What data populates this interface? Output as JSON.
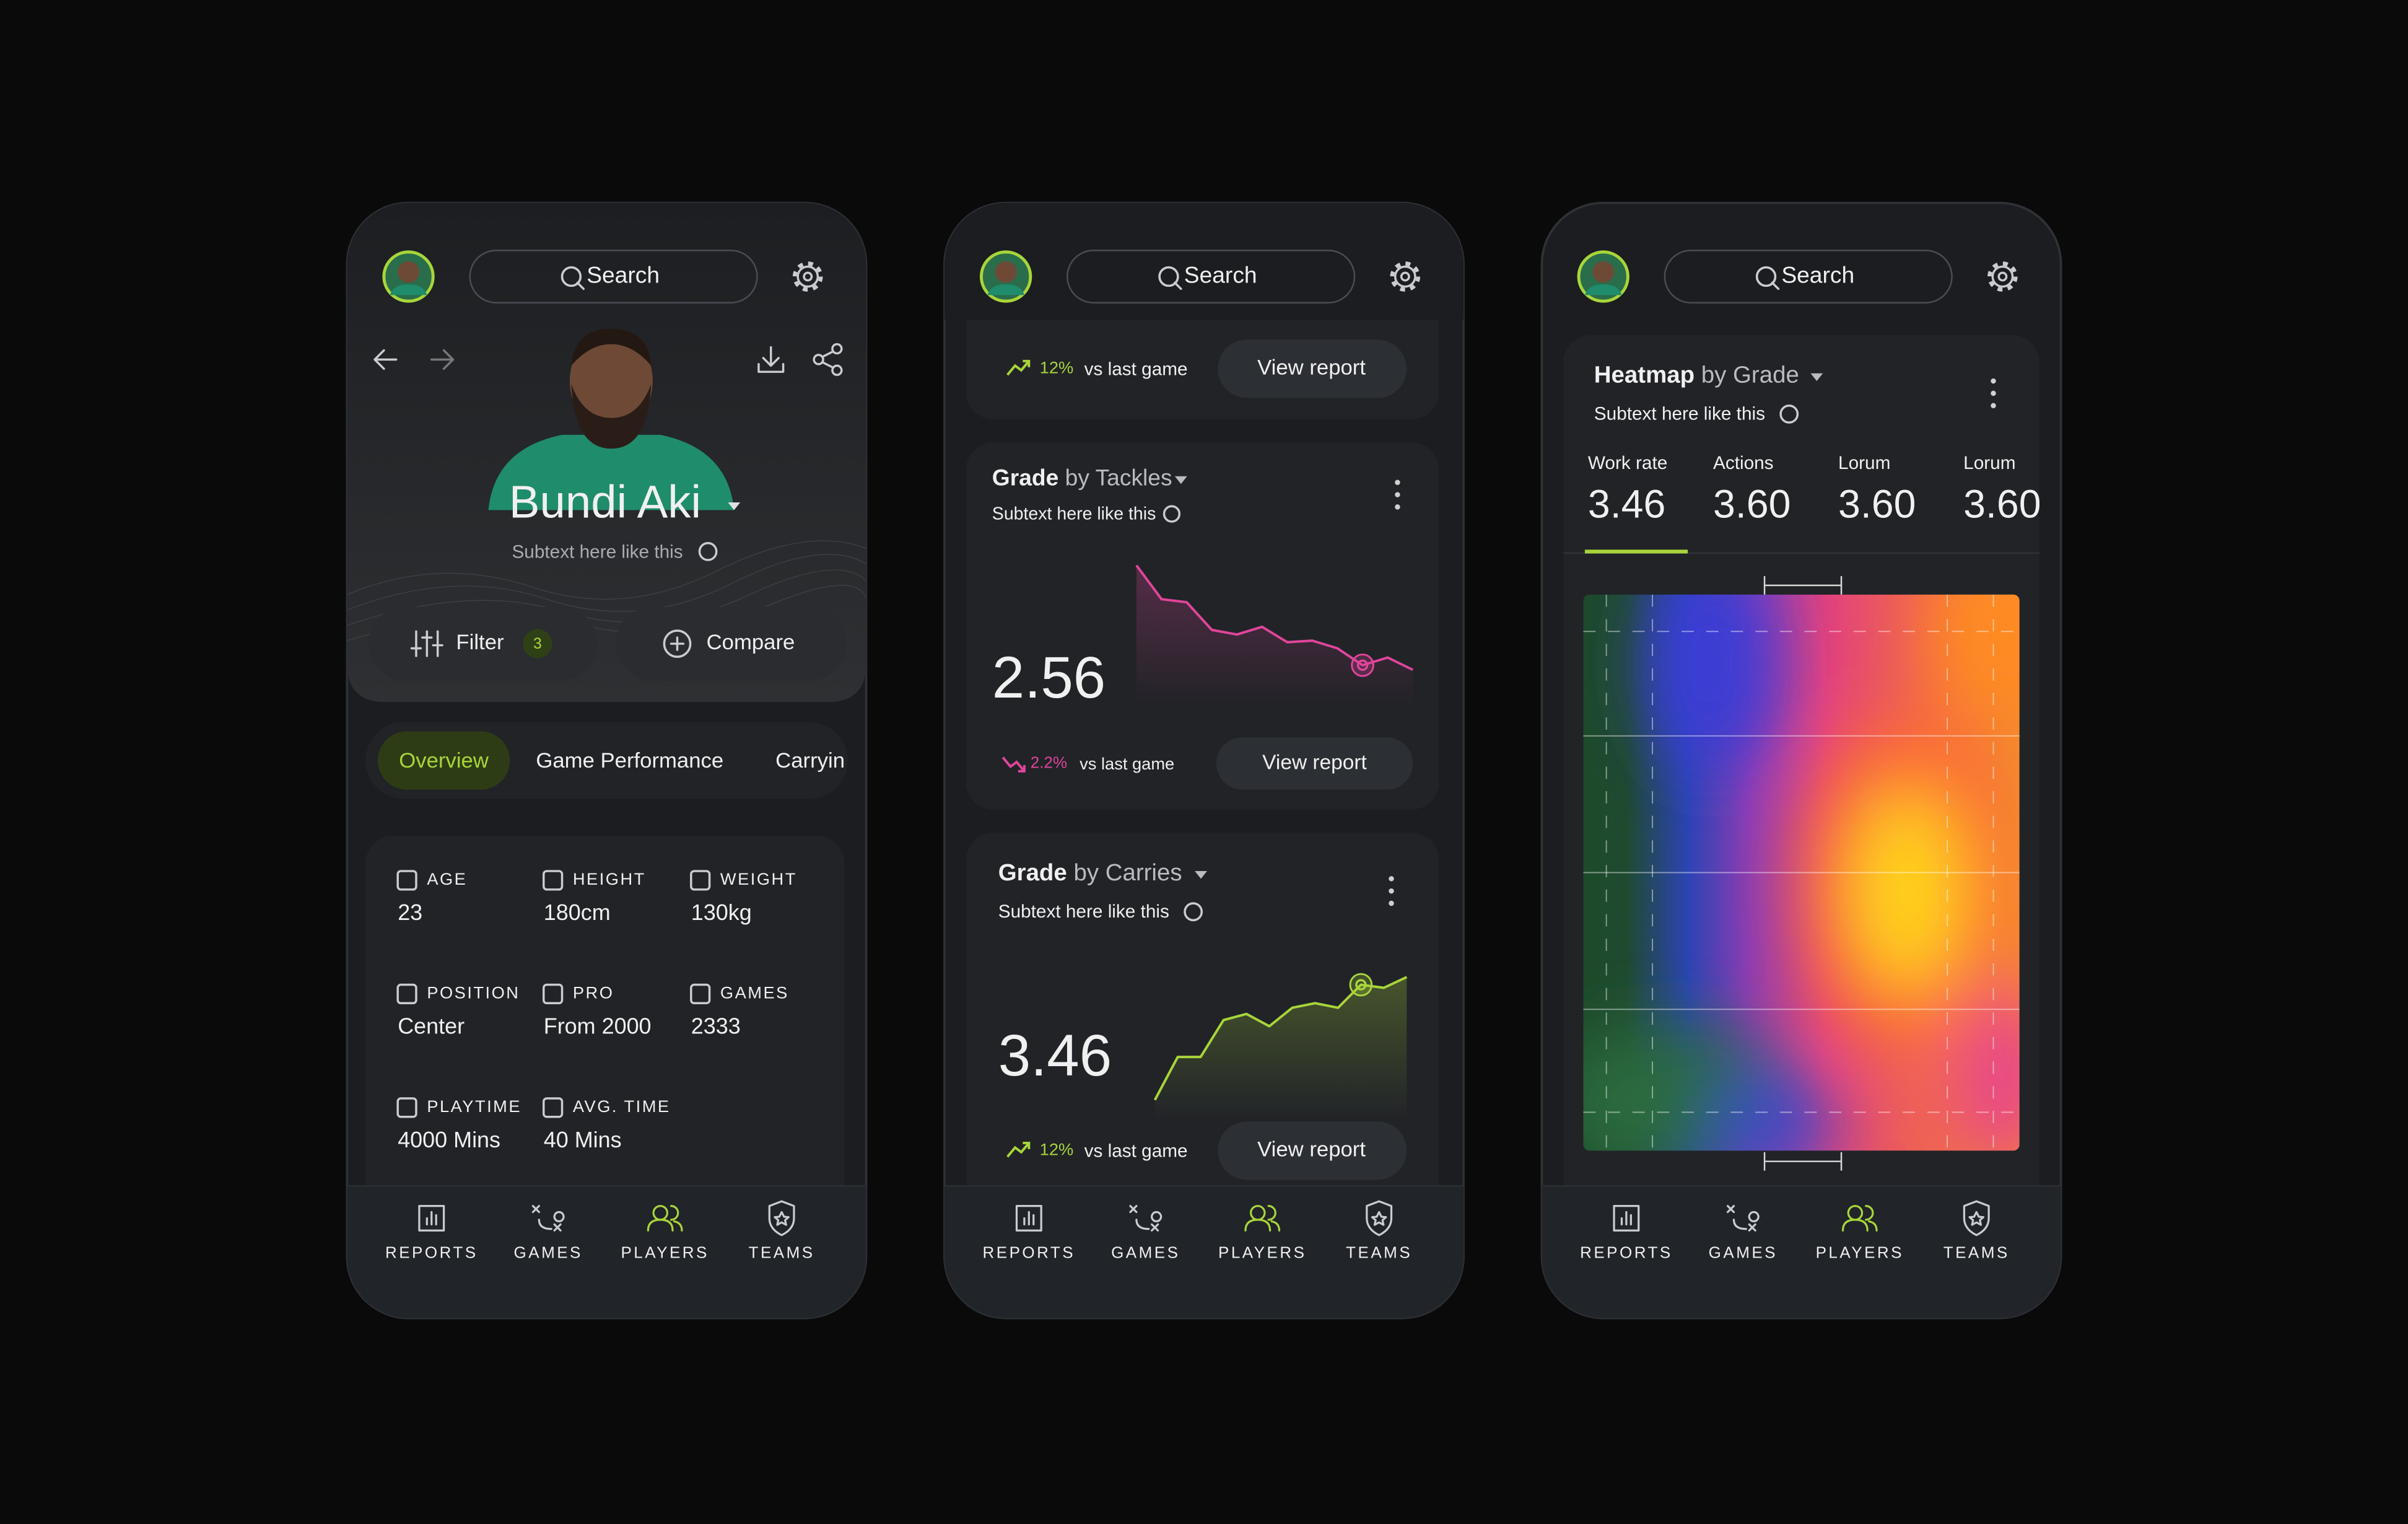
{
  "phones": [
    {
      "search": "Search",
      "player": {
        "name": "Bundi Aki",
        "subtext": "Subtext here like this"
      },
      "actions": {
        "filter": "Filter",
        "filter_count": "3",
        "compare": "Compare"
      },
      "tabs": [
        "Overview",
        "Game Performance",
        "Carryin"
      ],
      "stats": [
        {
          "label": "AGE",
          "value": "23"
        },
        {
          "label": "HEIGHT",
          "value": "180cm"
        },
        {
          "label": "WEIGHT",
          "value": "130kg"
        },
        {
          "label": "POSITION",
          "value": "Center"
        },
        {
          "label": "PRO",
          "value": "From 2000"
        },
        {
          "label": "GAMES",
          "value": "2333"
        },
        {
          "label": "PLAYTIME",
          "value": "4000 Mins"
        },
        {
          "label": "AVG. TIME",
          "value": "40 Mins"
        }
      ],
      "nav": [
        "REPORTS",
        "GAMES",
        "PLAYERS",
        "TEAMS"
      ]
    },
    {
      "search": "Search",
      "cards": [
        {
          "change": "12%",
          "change_text": "vs last game",
          "button": "View report"
        },
        {
          "title": "Grade",
          "by": "by Tackles",
          "subtext": "Subtext here like this",
          "value": "2.56",
          "trend": {
            "values": [
              9.2,
              7.0,
              6.8,
              5.0,
              4.7,
              5.2,
              4.2,
              4.3,
              3.8,
              2.7,
              3.2,
              2.4
            ],
            "ylim": [
              0,
              10
            ],
            "color": "#e0459b"
          },
          "change": "2.2%",
          "change_text": "vs last game",
          "button": "View report"
        },
        {
          "title": "Grade",
          "by": "by Carries",
          "subtext": "Subtext here like this",
          "value": "3.46",
          "trend": {
            "values": [
              1.4,
              4.2,
              4.2,
              6.6,
              7.0,
              6.2,
              7.4,
              7.7,
              7.4,
              8.9,
              8.7,
              9.4
            ],
            "ylim": [
              0,
              10
            ],
            "color": "#a8d53a"
          },
          "change": "12%",
          "change_text": "vs last game",
          "button": "View report"
        }
      ],
      "nav": [
        "REPORTS",
        "GAMES",
        "PLAYERS",
        "TEAMS"
      ]
    },
    {
      "search": "Search",
      "heatmap": {
        "title": "Heatmap",
        "by": "by Grade",
        "subtext": "Subtext here like this",
        "metrics": [
          {
            "label": "Work rate",
            "value": "3.46"
          },
          {
            "label": "Actions",
            "value": "3.60"
          },
          {
            "label": "Lorum",
            "value": "3.60"
          },
          {
            "label": "Lorum",
            "value": "3.60"
          }
        ]
      },
      "nav": [
        "REPORTS",
        "GAMES",
        "PLAYERS",
        "TEAMS"
      ]
    }
  ]
}
